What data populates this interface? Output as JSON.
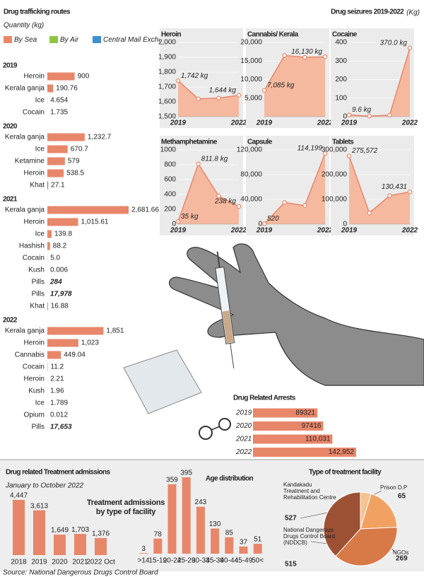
{
  "source": "Source: National Dangerous Drugs Control Board",
  "chart_data": [
    {
      "type": "route-bars",
      "title": "Drug trafficking routes",
      "subtitle": "Quantity (kg)",
      "legend": [
        {
          "name": "By Sea",
          "color": "#e8866a"
        },
        {
          "name": "By Air",
          "color": "#8dc63f"
        },
        {
          "name": "Central Mail Exchange",
          "color": "#3f8fcf"
        }
      ],
      "groups": [
        {
          "name": "2019",
          "categories": [
            "Heroin",
            "Kerala ganja",
            "Ice",
            "Cocain"
          ],
          "values": [
            900,
            190.76,
            4.654,
            1.735
          ],
          "value_labels": [
            null,
            null,
            null,
            null
          ],
          "colors": [
            "#e8866a",
            "#e8866a",
            "#e8866a",
            "#e8866a"
          ]
        },
        {
          "name": "2020",
          "categories": [
            "Kerala ganja",
            "Ice",
            "Ketamine",
            "Heroin",
            "Khat"
          ],
          "values": [
            1232.7,
            670.7,
            579,
            538.5,
            27.1
          ],
          "value_labels": [
            "1,232.7",
            null,
            null,
            null,
            null
          ],
          "colors": [
            "#e8866a",
            "#e8866a",
            "#e8866a",
            "#e8866a",
            "#3f8fcf"
          ]
        },
        {
          "name": "2021",
          "categories": [
            "Kerala ganja",
            "Heroin",
            "Ice",
            "Hashish",
            "Cocain",
            "Kush",
            "Pills",
            "Pills",
            "Khat"
          ],
          "values": [
            2681.66,
            1015.61,
            139.8,
            88.2,
            5,
            0.006,
            284,
            17978,
            16.88
          ],
          "value_labels": [
            "2,681.66",
            "1,015.61",
            null,
            null,
            "5.0",
            null,
            null,
            "17,978",
            null
          ],
          "colors": [
            "#e8866a",
            "#e8866a",
            "#e8866a",
            "#e8866a",
            "#e8866a",
            "#e8866a",
            null,
            null,
            "#3f8fcf"
          ]
        },
        {
          "name": "2022",
          "categories": [
            "Kerala ganja",
            "Heroin",
            "Cannabis",
            "Cocain",
            "Heroin",
            "Kush",
            "Ice",
            "Opium",
            "Pills"
          ],
          "values": [
            1851,
            1023,
            449.04,
            11.2,
            2.21,
            1.96,
            1.789,
            0.012,
            17653
          ],
          "value_labels": [
            "1,851",
            "1,023",
            null,
            null,
            null,
            null,
            null,
            null,
            "17,653"
          ],
          "colors": [
            "#e8866a",
            "#e8866a",
            "#e8866a",
            "#e8866a",
            "#e8866a",
            "#e8866a",
            "#e8866a",
            "#e8866a",
            null
          ]
        }
      ]
    },
    {
      "type": "small-multiples",
      "title": "Drug seizures 2019-2022",
      "unit": "(Kg)",
      "charts": [
        {
          "type": "line",
          "title": "Heroin",
          "categories": [
            "2019",
            null,
            null,
            "2022"
          ],
          "values": [
            1742,
            1620,
            1625,
            1644
          ],
          "value_labels": [
            "1,742 kg",
            null,
            null,
            "1,644 kg"
          ],
          "ylim": [
            1500,
            2000
          ],
          "yticks": [
            {
              "value": 1500,
              "label": "1,500"
            },
            {
              "value": 1600,
              "label": "1,600"
            },
            {
              "value": 1700,
              "label": "1,700"
            },
            {
              "value": 1800,
              "label": "1,800"
            },
            {
              "value": 1900,
              "label": "1,900"
            },
            {
              "value": 2000,
              "label": "2,000"
            }
          ]
        },
        {
          "type": "line",
          "title": "Cannabis/ Kerala",
          "categories": [
            "2019",
            null,
            null,
            "2022"
          ],
          "values": [
            7085,
            16500,
            16000,
            16130
          ],
          "value_labels": [
            "7,085 kg",
            null,
            null,
            "16,130 kg"
          ],
          "ylim": [
            0,
            20000
          ],
          "yticks": [
            {
              "value": 5000,
              "label": "5,000"
            },
            {
              "value": 10000,
              "label": "10,000"
            },
            {
              "value": 15000,
              "label": "15,000"
            },
            {
              "value": 20000,
              "label": "20,000"
            }
          ]
        },
        {
          "type": "line",
          "title": "Cocaine",
          "categories": [
            "2019",
            null,
            null,
            "2022"
          ],
          "values": [
            9.6,
            3,
            8,
            370
          ],
          "value_labels": [
            "9.6 kg",
            null,
            null,
            "370.0 kg"
          ],
          "ylim": [
            0,
            400
          ],
          "yticks": [
            0,
            100,
            200,
            300,
            400
          ]
        },
        {
          "type": "line",
          "title": "Methamphetamine",
          "categories": [
            "2019",
            null,
            null,
            "2022"
          ],
          "values": [
            35,
            811.8,
            380,
            238
          ],
          "value_labels": [
            "35 kg",
            "811.8 kg",
            null,
            "238 kg"
          ],
          "ylim": [
            0,
            1000
          ],
          "yticks": [
            0,
            200,
            400,
            600,
            800,
            1000
          ]
        },
        {
          "type": "line",
          "title": "Capsule",
          "categories": [
            "2019",
            null,
            null,
            "2022"
          ],
          "values": [
            520,
            35000,
            30000,
            114199
          ],
          "value_labels": [
            "520",
            null,
            null,
            "114,199"
          ],
          "ylim": [
            0,
            120000
          ],
          "yticks": [
            0,
            {
              "value": 40000,
              "label": "40,000"
            },
            {
              "value": 80000,
              "label": "80,000"
            },
            {
              "value": 120000,
              "label": "120,000"
            }
          ]
        },
        {
          "type": "line",
          "title": "Tablets",
          "categories": [
            "2019",
            null,
            null,
            "2022"
          ],
          "values": [
            275572,
            45000,
            115000,
            130431
          ],
          "value_labels": [
            "275,572",
            null,
            null,
            "130,431"
          ],
          "ylim": [
            0,
            300000
          ],
          "yticks": [
            0,
            {
              "value": 100000,
              "label": "100,000"
            },
            {
              "value": 200000,
              "label": "200,000"
            },
            {
              "value": 300000,
              "label": "300,000"
            }
          ]
        }
      ]
    },
    {
      "type": "hbar",
      "title": "Drug Related Arrests",
      "categories": [
        "2019",
        "2020",
        "2021",
        "2022"
      ],
      "values": [
        89321,
        97416,
        110031,
        142952
      ],
      "value_labels": [
        null,
        null,
        "110,031",
        "142,952"
      ],
      "color": "#e8866a"
    },
    {
      "type": "bar",
      "title": "Drug related Treatment admissions",
      "subtitle": "January to October 2022",
      "chart_title": "Treatment admissions by type of facility",
      "categories": [
        "2018",
        "2019",
        "2020",
        "2021",
        "2022 Oct"
      ],
      "values": [
        4447,
        3613,
        1649,
        1703,
        1376
      ],
      "value_labels": [
        "4,447",
        "3,613",
        "1,649",
        "1,703",
        "1,376"
      ],
      "color": "#e8866a"
    },
    {
      "type": "bar",
      "title": "Age distribution",
      "categories": [
        ">14",
        "15-19",
        "20-24",
        "25-29",
        "30-34",
        "35-39",
        "40-44",
        "45-49",
        "50<"
      ],
      "values": [
        3,
        78,
        359,
        395,
        243,
        130,
        85,
        37,
        51
      ],
      "color": "#e8866a"
    },
    {
      "type": "pie",
      "title": "Type of treatment facility",
      "categories": [
        "Kandakadu Treatment and Rehabilitation Centre",
        "Prison D.P",
        "NGOs",
        "National Dangerous Drugs Control Board (NDDCB)"
      ],
      "values": [
        527,
        65,
        269,
        515
      ],
      "colors": [
        "#9c5134",
        "#f7c391",
        "#f1a263",
        "#d87a47"
      ]
    }
  ]
}
